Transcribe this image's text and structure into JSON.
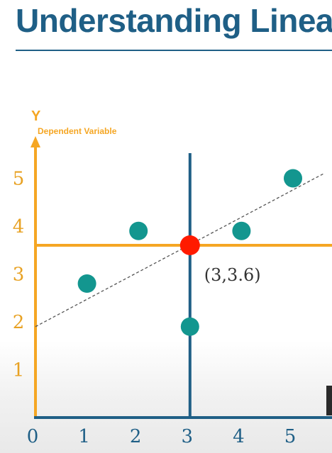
{
  "title": "Understanding Linea",
  "chart_data": {
    "type": "scatter",
    "x_ticks": [
      "0",
      "1",
      "2",
      "3",
      "4",
      "5"
    ],
    "y_ticks": [
      "1",
      "2",
      "3",
      "4",
      "5"
    ],
    "y_axis_letter": "Y",
    "ylabel": "Dependent Variable",
    "xlabel": "",
    "xlim": [
      0,
      5.6
    ],
    "ylim": [
      0,
      5.6
    ],
    "grid": false,
    "points": [
      {
        "x": 1,
        "y": 2.8
      },
      {
        "x": 2,
        "y": 3.9
      },
      {
        "x": 3,
        "y": 1.9
      },
      {
        "x": 4,
        "y": 3.9
      },
      {
        "x": 5,
        "y": 5.0
      }
    ],
    "mean_point": {
      "x": 3,
      "y": 3.6,
      "label": "(3,3.6)"
    },
    "regression_line": {
      "x1": 0,
      "y1": 1.9,
      "x2": 5.6,
      "y2": 5.1
    },
    "colors": {
      "axis_y": "#f5a623",
      "axis_x": "#1f5f86",
      "vertical_mean_line": "#1f5f86",
      "horizontal_mean_line": "#f5a623",
      "points": "#13968f",
      "mean_point": "#ff1a00",
      "regression_line": "#555555",
      "tick_labels": "#e8a224",
      "x_tick_labels": "#1f5f86"
    }
  }
}
